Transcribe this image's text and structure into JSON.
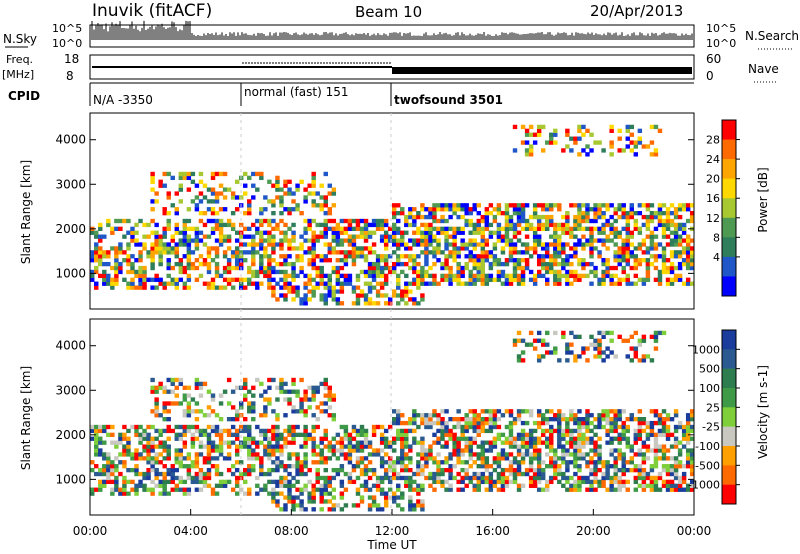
{
  "header": {
    "station": "Inuvik (fitACF)",
    "beam": "Beam 10",
    "date": "20/Apr/2013"
  },
  "panels": {
    "nsky": {
      "label": "N.Sky",
      "top_tick": "10^5",
      "bottom_tick": "10^0",
      "right_top": "10^5",
      "right_bottom": "10^0",
      "right_label": "N.Search"
    },
    "freq": {
      "label_top": "Freq.",
      "label_bottom": "[MHz]",
      "ticks": [
        "18",
        "8"
      ],
      "right_ticks": [
        "60",
        "0"
      ],
      "right_label": "Nave"
    },
    "cpid": {
      "label": "CPID",
      "segments": [
        "N/A -3350",
        "normal (fast) 151",
        "twofsound 3501"
      ]
    }
  },
  "chart_data": [
    {
      "type": "heatmap",
      "name": "power",
      "ylabel": "Slant Range [km]",
      "y_ticks": [
        1000,
        2000,
        3000,
        4000
      ],
      "ylim": [
        200,
        4600
      ],
      "colorbar_label": "Power [dB]",
      "colorbar_ticks": [
        "28",
        "24",
        "20",
        "16",
        "12",
        "8",
        "4"
      ],
      "colorbar_colors": [
        "#ff0000",
        "#ff6a00",
        "#ffa500",
        "#ffd800",
        "#a8c832",
        "#4f9a52",
        "#2e7d5b",
        "#1f56c8",
        "#0000ff"
      ]
    },
    {
      "type": "heatmap",
      "name": "velocity",
      "ylabel": "Slant Range [km]",
      "y_ticks": [
        1000,
        2000,
        3000,
        4000
      ],
      "ylim": [
        200,
        4600
      ],
      "colorbar_label": "Velocity [m s-1]",
      "colorbar_ticks": [
        "1000",
        "500",
        "100",
        "25",
        "-25",
        "-100",
        "-500",
        "-1000"
      ],
      "colorbar_colors": [
        "#1a3c9c",
        "#2a5a8f",
        "#2e7d4f",
        "#3f9a48",
        "#7fcf3a",
        "#c8c8c0",
        "#ffa000",
        "#ff6a00",
        "#ff0000"
      ]
    }
  ],
  "xaxis": {
    "ticks": [
      "00:00",
      "04:00",
      "08:00",
      "12:00",
      "16:00",
      "20:00",
      "00:00"
    ],
    "label": "Time UT"
  }
}
